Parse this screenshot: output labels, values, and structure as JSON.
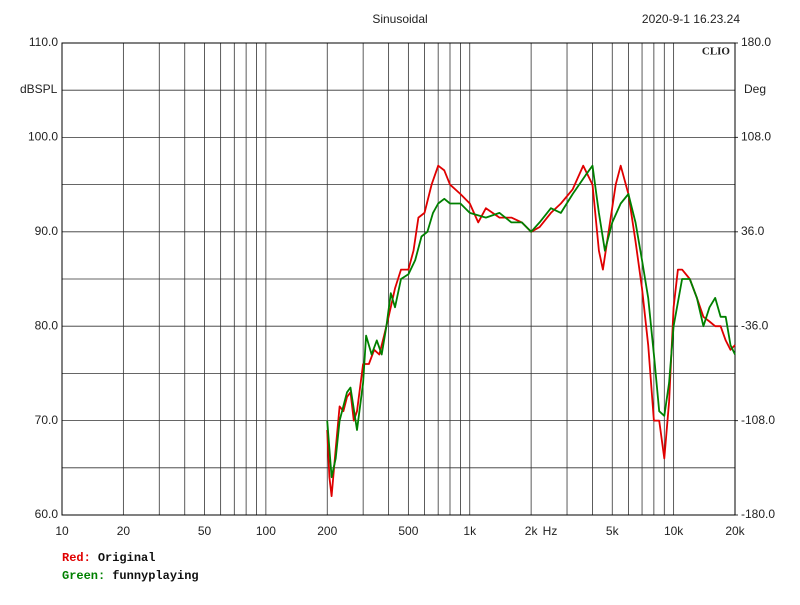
{
  "chart_data": {
    "type": "line",
    "title": "Sinusoidal",
    "timestamp": "2020-9-1 16.23.24",
    "brand": "CLIO",
    "ylabel": "dBSPL",
    "y2label": "Deg",
    "xunit": "Hz",
    "xscale": "log",
    "xlim": [
      10,
      20000
    ],
    "xticks": [
      {
        "value": 10,
        "label": "10"
      },
      {
        "value": 20,
        "label": "20"
      },
      {
        "value": 50,
        "label": "50"
      },
      {
        "value": 100,
        "label": "100"
      },
      {
        "value": 200,
        "label": "200"
      },
      {
        "value": 500,
        "label": "500"
      },
      {
        "value": 1000,
        "label": "1k"
      },
      {
        "value": 2000,
        "label": "2k"
      },
      {
        "value": 5000,
        "label": "5k"
      },
      {
        "value": 10000,
        "label": "10k"
      },
      {
        "value": 20000,
        "label": "20k"
      }
    ],
    "xgrid_minor": [
      30,
      40,
      60,
      70,
      80,
      90,
      300,
      400,
      600,
      700,
      800,
      900,
      3000,
      4000,
      6000,
      7000,
      8000,
      9000
    ],
    "ylim": [
      60,
      110
    ],
    "yticks": [
      {
        "value": 60,
        "label": "60.0"
      },
      {
        "value": 70,
        "label": "70.0"
      },
      {
        "value": 80,
        "label": "80.0"
      },
      {
        "value": 90,
        "label": "90.0"
      },
      {
        "value": 100,
        "label": "100.0"
      },
      {
        "value": 110,
        "label": "110.0"
      }
    ],
    "ygrid_minor": [
      65,
      75,
      85,
      95,
      105
    ],
    "y2lim": [
      -180,
      180
    ],
    "y2ticks": [
      {
        "value": -180,
        "label": "-180.0"
      },
      {
        "value": -108,
        "label": "-108.0"
      },
      {
        "value": -36,
        "label": "-36.0"
      },
      {
        "value": 36,
        "label": "36.0"
      },
      {
        "value": 108,
        "label": "108.0"
      },
      {
        "value": 180,
        "label": "180.0"
      }
    ],
    "grid": true,
    "series": [
      {
        "name": "Original",
        "legend_prefix": "Red:",
        "color": "#e00000",
        "x": [
          200,
          205,
          210,
          220,
          230,
          240,
          250,
          260,
          270,
          280,
          300,
          320,
          340,
          360,
          380,
          400,
          430,
          460,
          500,
          530,
          560,
          600,
          650,
          700,
          750,
          800,
          900,
          1000,
          1100,
          1200,
          1400,
          1600,
          1800,
          2000,
          2200,
          2500,
          2800,
          3200,
          3600,
          4000,
          4300,
          4500,
          4800,
          5200,
          5500,
          6000,
          6500,
          7000,
          7500,
          8000,
          8500,
          9000,
          9500,
          10000,
          10500,
          11000,
          12000,
          13000,
          14000,
          15000,
          16000,
          17000,
          18000,
          19000,
          20000
        ],
        "values": [
          69,
          64,
          62,
          67,
          71.5,
          71,
          72.5,
          73,
          70,
          71,
          76,
          76,
          77.5,
          77,
          79,
          81,
          84,
          86,
          86,
          88,
          91.5,
          92,
          95,
          97,
          96.5,
          95,
          94,
          93,
          91,
          92.5,
          91.5,
          91.5,
          91,
          90,
          90.5,
          92,
          93,
          94.5,
          97,
          95,
          88,
          86,
          90,
          95,
          97,
          94,
          89,
          84,
          78,
          70,
          70,
          66,
          72,
          82,
          86,
          86,
          85,
          83,
          81,
          80.5,
          80,
          80,
          78.5,
          77.5,
          78
        ]
      },
      {
        "name": "funnyplaying",
        "legend_prefix": "Green:",
        "color": "#008000",
        "x": [
          200,
          210,
          220,
          230,
          250,
          260,
          280,
          300,
          310,
          330,
          350,
          370,
          390,
          410,
          430,
          460,
          500,
          540,
          580,
          620,
          660,
          700,
          750,
          800,
          900,
          1000,
          1200,
          1400,
          1600,
          1800,
          2000,
          2200,
          2500,
          2800,
          3200,
          3700,
          4000,
          4300,
          4600,
          5000,
          5500,
          6000,
          6500,
          7000,
          7500,
          8000,
          8500,
          9000,
          9500,
          10000,
          11000,
          12000,
          13000,
          14000,
          15000,
          16000,
          17000,
          18000,
          19000,
          20000
        ],
        "values": [
          70,
          64,
          66,
          70,
          73,
          73.5,
          69,
          74,
          79,
          77,
          78.5,
          77,
          80,
          83.5,
          82,
          85,
          85.5,
          87,
          89.5,
          90,
          92,
          93,
          93.5,
          93,
          93,
          92,
          91.5,
          92,
          91,
          91,
          90,
          91,
          92.5,
          92,
          94,
          96,
          97,
          92,
          88,
          91,
          93,
          94,
          91,
          87,
          83,
          77,
          71,
          70.5,
          74,
          80,
          85,
          85,
          83,
          80,
          82,
          83,
          81,
          81,
          78,
          77
        ]
      }
    ]
  }
}
